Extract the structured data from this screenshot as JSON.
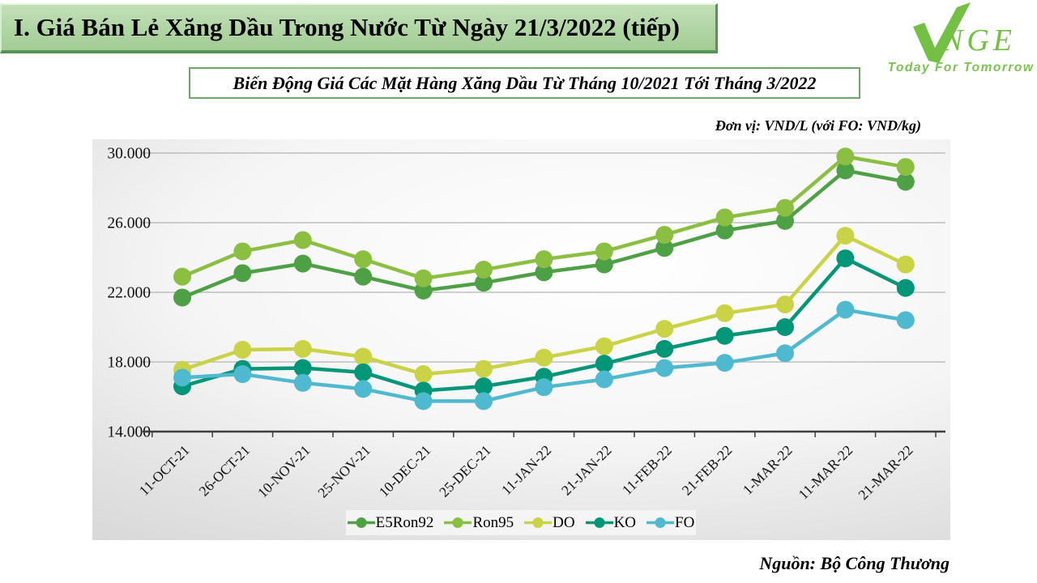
{
  "header": {
    "title": "I. Giá Bán Lẻ Xăng Dầu Trong Nước Từ Ngày 21/3/2022 (tiếp)",
    "logo": {
      "brand": "NGE",
      "tagline": "Today For Tomorrow",
      "brand_color": "#74c044",
      "tagline_color": "#7cc34e"
    }
  },
  "subtitle": "Biến Động Giá Các Mặt Hàng Xăng Dầu Từ Tháng 10/2021 Tới Tháng 3/2022",
  "unit_note": "Đơn vị: VND/L (với FO: VND/kg)",
  "source": "Nguồn: Bộ Công Thương",
  "chart_data": {
    "type": "line",
    "title": "Biến Động Giá Các Mặt Hàng Xăng Dầu Từ Tháng 10/2021 Tới Tháng 3/2022",
    "ylabel": "VND/L (với FO: VND/kg)",
    "xlabel": "",
    "ylim": [
      14000,
      30900
    ],
    "grid": true,
    "legend_position": "bottom",
    "y_ticks": [
      {
        "value": 30000,
        "label": "30.000"
      },
      {
        "value": 26000,
        "label": "26.000"
      },
      {
        "value": 22000,
        "label": "22.000"
      },
      {
        "value": 18000,
        "label": "18.000"
      },
      {
        "value": 14000,
        "label": "14.000"
      }
    ],
    "categories": [
      "11-OCT-21",
      "26-OCT-21",
      "10-NOV-21",
      "25-NOV-21",
      "10-DEC-21",
      "25-DEC-21",
      "11-JAN-22",
      "21-JAN-22",
      "11-FEB-22",
      "21-FEB-22",
      "1-MAR-22",
      "11-MAR-22",
      "21-MAR-22"
    ],
    "series": [
      {
        "name": "E5Ron92",
        "color": "#4da144",
        "values": [
          21700,
          23100,
          23650,
          22900,
          22100,
          22550,
          23150,
          23600,
          24550,
          25550,
          26100,
          29000,
          28350
        ]
      },
      {
        "name": "Ron95",
        "color": "#8abf41",
        "values": [
          22900,
          24350,
          25000,
          23900,
          22800,
          23300,
          23900,
          24350,
          25300,
          26300,
          26850,
          29800,
          29200
        ]
      },
      {
        "name": "DO",
        "color": "#c9d345",
        "values": [
          17550,
          18700,
          18750,
          18300,
          17300,
          17600,
          18250,
          18900,
          19900,
          20800,
          21300,
          25250,
          23600
        ]
      },
      {
        "name": "KO",
        "color": "#029678",
        "values": [
          16600,
          17600,
          17650,
          17400,
          16350,
          16600,
          17150,
          17900,
          18750,
          19500,
          20000,
          23950,
          22250
        ]
      },
      {
        "name": "FO",
        "color": "#4fb9cf",
        "values": [
          17100,
          17300,
          16800,
          16450,
          15750,
          15750,
          16550,
          17000,
          17650,
          17950,
          18500,
          21000,
          20400
        ]
      }
    ]
  }
}
